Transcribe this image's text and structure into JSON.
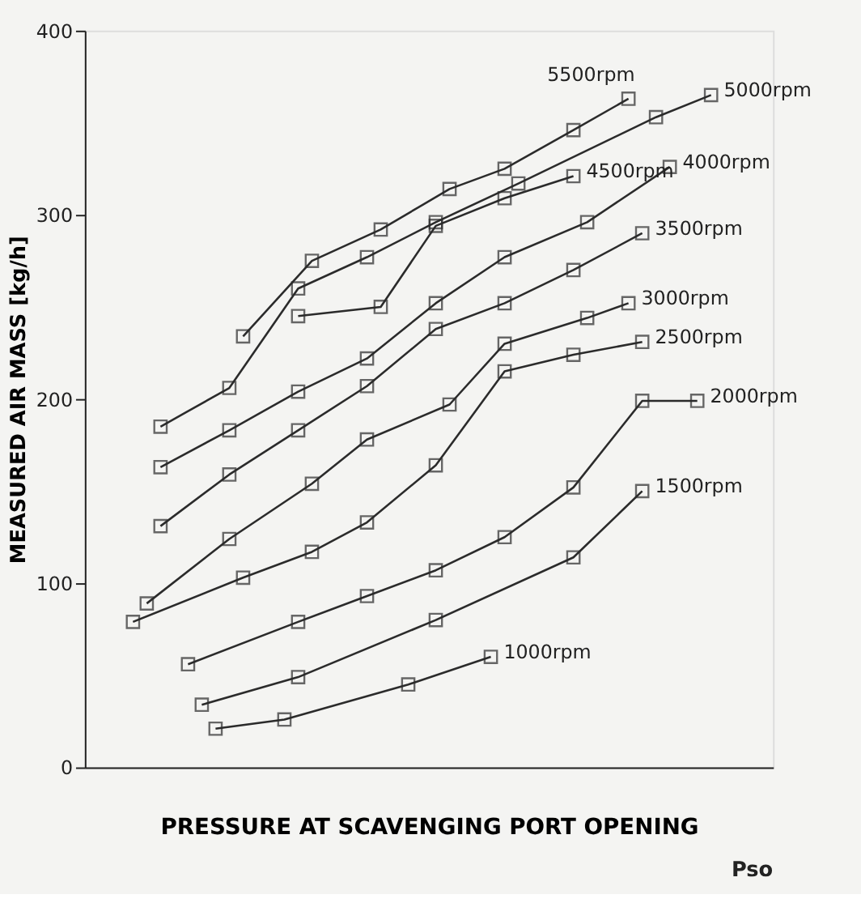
{
  "chart_data": {
    "type": "line",
    "xlabel": "PRESSURE AT SCAVENGING PORT OPENING",
    "ylabel": "MEASURED AIR MASS [kg/h]",
    "annotations": [
      "Pso"
    ],
    "categories": [
      null,
      null,
      null,
      null,
      null,
      null,
      null,
      null,
      null,
      null,
      null,
      null,
      null,
      null,
      null,
      null,
      null,
      null,
      null,
      null,
      null,
      null,
      null,
      null,
      null,
      null,
      null,
      null,
      null,
      null,
      null,
      null,
      null,
      null,
      null,
      null,
      null,
      null,
      null,
      null,
      null,
      null,
      null,
      null,
      null,
      null,
      null,
      null,
      null,
      null
    ],
    "ylim": [
      0,
      400
    ],
    "yticks": [
      0,
      100,
      200,
      300,
      400
    ],
    "tick_labels": "y",
    "grid": false,
    "legend": "right",
    "marker": "square",
    "line_style": "solid",
    "series": [
      {
        "name": "5500rpm",
        "color": "#2b2b2b",
        "values": [
          null,
          null,
          null,
          null,
          null,
          null,
          null,
          null,
          null,
          null,
          null,
          234,
          null,
          null,
          null,
          null,
          275,
          null,
          null,
          null,
          null,
          292,
          null,
          null,
          null,
          null,
          314,
          null,
          null,
          null,
          325,
          null,
          null,
          null,
          null,
          346,
          null,
          null,
          null,
          363,
          null,
          null,
          null,
          null,
          null,
          null,
          null,
          null,
          null,
          null
        ]
      },
      {
        "name": "5000rpm",
        "color": "#2b2b2b",
        "values": [
          null,
          null,
          null,
          null,
          null,
          185,
          null,
          null,
          null,
          null,
          206,
          null,
          null,
          null,
          null,
          260,
          null,
          null,
          null,
          null,
          277,
          null,
          null,
          null,
          null,
          296,
          null,
          null,
          null,
          null,
          null,
          317,
          null,
          null,
          null,
          null,
          null,
          null,
          null,
          null,
          null,
          353,
          null,
          null,
          null,
          365,
          null,
          null,
          null,
          null
        ]
      },
      {
        "name": "4500rpm",
        "color": "#2b2b2b",
        "values": [
          null,
          null,
          null,
          null,
          null,
          null,
          null,
          null,
          null,
          null,
          null,
          null,
          null,
          null,
          null,
          245,
          null,
          null,
          null,
          null,
          null,
          250,
          null,
          null,
          null,
          294,
          null,
          null,
          null,
          null,
          309,
          null,
          null,
          null,
          null,
          321,
          null,
          null,
          null,
          null,
          null,
          null,
          null,
          null,
          null,
          null,
          null,
          null,
          null,
          null
        ]
      },
      {
        "name": "4000rpm",
        "color": "#2b2b2b",
        "values": [
          null,
          null,
          null,
          null,
          null,
          163,
          null,
          null,
          null,
          null,
          183,
          null,
          null,
          null,
          null,
          204,
          null,
          null,
          null,
          null,
          222,
          null,
          null,
          null,
          null,
          252,
          null,
          null,
          null,
          null,
          277,
          null,
          null,
          null,
          null,
          null,
          296,
          null,
          null,
          null,
          null,
          null,
          326,
          null,
          null,
          null,
          null,
          null,
          null,
          null
        ]
      },
      {
        "name": "3500rpm",
        "color": "#2b2b2b",
        "values": [
          null,
          null,
          null,
          null,
          null,
          131,
          null,
          null,
          null,
          null,
          159,
          null,
          null,
          null,
          null,
          183,
          null,
          null,
          null,
          null,
          207,
          null,
          null,
          null,
          null,
          238,
          null,
          null,
          null,
          null,
          252,
          null,
          null,
          null,
          null,
          270,
          null,
          null,
          null,
          null,
          290,
          null,
          null,
          null,
          null,
          null,
          null,
          null,
          null,
          null
        ]
      },
      {
        "name": "3000rpm",
        "color": "#2b2b2b",
        "values": [
          null,
          null,
          null,
          null,
          89,
          null,
          null,
          null,
          null,
          null,
          124,
          null,
          null,
          null,
          null,
          null,
          154,
          null,
          null,
          null,
          178,
          null,
          null,
          null,
          null,
          null,
          197,
          null,
          null,
          null,
          230,
          null,
          null,
          null,
          null,
          null,
          244,
          null,
          null,
          252,
          null,
          null,
          null,
          null,
          null,
          null,
          null,
          null,
          null,
          null
        ]
      },
      {
        "name": "2500rpm",
        "color": "#2b2b2b",
        "values": [
          null,
          null,
          null,
          79,
          null,
          null,
          null,
          null,
          null,
          null,
          null,
          103,
          null,
          null,
          null,
          null,
          117,
          null,
          null,
          null,
          133,
          null,
          null,
          null,
          null,
          164,
          null,
          null,
          null,
          null,
          215,
          null,
          null,
          null,
          null,
          224,
          null,
          null,
          null,
          null,
          231,
          null,
          null,
          null,
          null,
          null,
          null,
          null,
          null,
          null
        ]
      },
      {
        "name": "2000rpm",
        "color": "#2b2b2b",
        "values": [
          null,
          null,
          null,
          null,
          null,
          null,
          null,
          56,
          null,
          null,
          null,
          null,
          null,
          null,
          null,
          79,
          null,
          null,
          null,
          null,
          93,
          null,
          null,
          null,
          null,
          107,
          null,
          null,
          null,
          null,
          125,
          null,
          null,
          null,
          null,
          152,
          null,
          null,
          null,
          null,
          199,
          null,
          null,
          null,
          199,
          null,
          null,
          null,
          null,
          null
        ]
      },
      {
        "name": "1500rpm",
        "color": "#2b2b2b",
        "values": [
          null,
          null,
          null,
          null,
          null,
          null,
          null,
          null,
          34,
          null,
          null,
          null,
          null,
          null,
          null,
          49,
          null,
          null,
          null,
          null,
          null,
          null,
          null,
          null,
          null,
          80,
          null,
          null,
          null,
          null,
          null,
          null,
          null,
          null,
          null,
          114,
          null,
          null,
          null,
          null,
          150,
          null,
          null,
          null,
          null,
          null,
          null,
          null,
          null,
          null
        ]
      },
      {
        "name": "1000rpm",
        "color": "#2b2b2b",
        "values": [
          null,
          null,
          null,
          null,
          null,
          null,
          null,
          null,
          null,
          21,
          null,
          null,
          null,
          null,
          26,
          null,
          null,
          null,
          null,
          null,
          null,
          null,
          null,
          45,
          null,
          null,
          null,
          null,
          null,
          60,
          null,
          null,
          null,
          null,
          null,
          null,
          null,
          null,
          null,
          null,
          null,
          null,
          null,
          null,
          null,
          null,
          null,
          null,
          null,
          null
        ]
      }
    ]
  }
}
